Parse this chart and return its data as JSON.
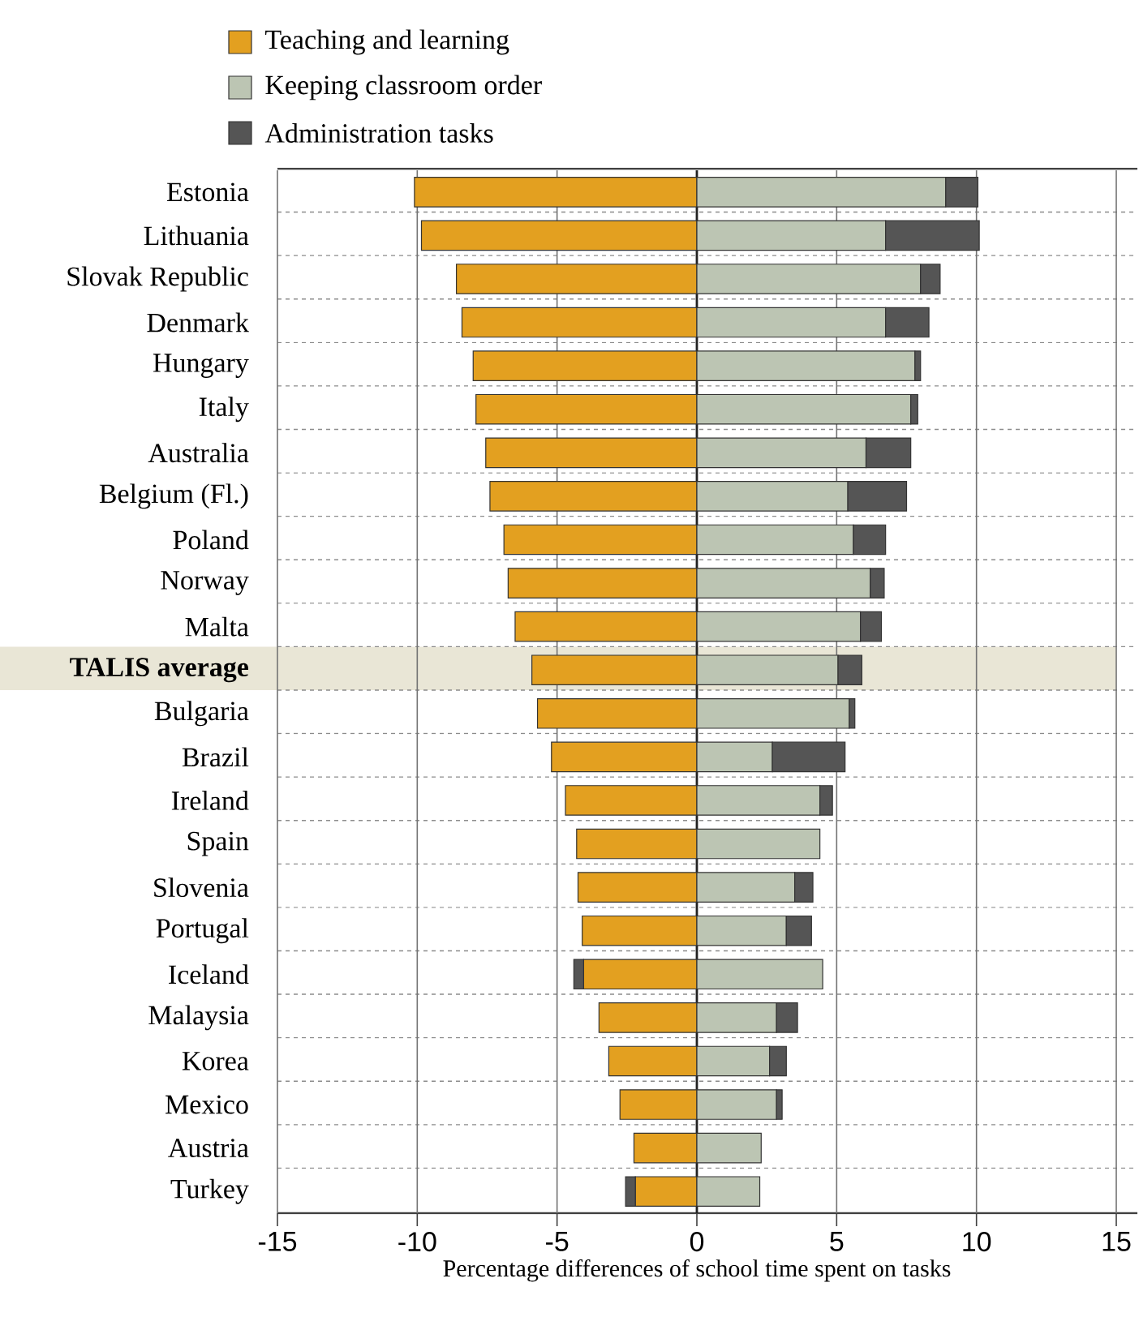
{
  "chart_data": {
    "type": "bar",
    "orientation": "horizontal",
    "stacked": true,
    "xlabel": "Percentage differences of school time spent on tasks",
    "categories": [
      "Estonia",
      "Lithuania",
      "Slovak Republic",
      "Denmark",
      "Hungary",
      "Italy",
      "Australia",
      "Belgium (Fl.)",
      "Poland",
      "Norway",
      "Malta",
      "TALIS average",
      "Bulgaria",
      "Brazil",
      "Ireland",
      "Spain",
      "Slovenia",
      "Portugal",
      "Iceland",
      "Malaysia",
      "Korea",
      "Mexico",
      "Austria",
      "Turkey"
    ],
    "series": [
      {
        "name": "Teaching and learning",
        "color": "#e3a020",
        "values": [
          -10.1,
          -9.85,
          -8.6,
          -8.4,
          -8.0,
          -7.9,
          -7.55,
          -7.4,
          -6.9,
          -6.75,
          -6.5,
          -5.9,
          -5.7,
          -5.2,
          -4.7,
          -4.3,
          -4.25,
          -4.1,
          -4.05,
          -3.5,
          -3.15,
          -2.75,
          -2.25,
          -2.2
        ]
      },
      {
        "name": "Keeping classroom order",
        "color": "#bcc5b3",
        "values": [
          8.9,
          6.75,
          8.0,
          6.75,
          7.8,
          7.65,
          6.05,
          5.4,
          5.6,
          6.2,
          5.85,
          5.05,
          5.45,
          2.7,
          4.4,
          4.4,
          3.5,
          3.2,
          4.5,
          2.85,
          2.6,
          2.85,
          2.3,
          2.25
        ]
      },
      {
        "name": "Administration tasks",
        "color": "#555555",
        "values": [
          1.15,
          3.35,
          0.7,
          1.55,
          0.2,
          0.25,
          1.6,
          2.1,
          1.15,
          0.5,
          0.75,
          0.85,
          0.2,
          2.6,
          0.45,
          null,
          0.65,
          0.9,
          -0.35,
          0.75,
          0.6,
          0.2,
          null,
          -0.35
        ]
      }
    ],
    "xlim": [
      -15,
      15
    ],
    "xticks": [
      -15,
      -10,
      -5,
      0,
      5,
      10,
      15
    ],
    "grid": "x",
    "legend": "top",
    "ref_lines": [
      {
        "axis": "x",
        "value": 0,
        "color": "#222222"
      }
    ],
    "bands": [
      {
        "axis": "y",
        "from": "TALIS average",
        "to": "TALIS average",
        "color": "#e9e6d6"
      }
    ]
  }
}
